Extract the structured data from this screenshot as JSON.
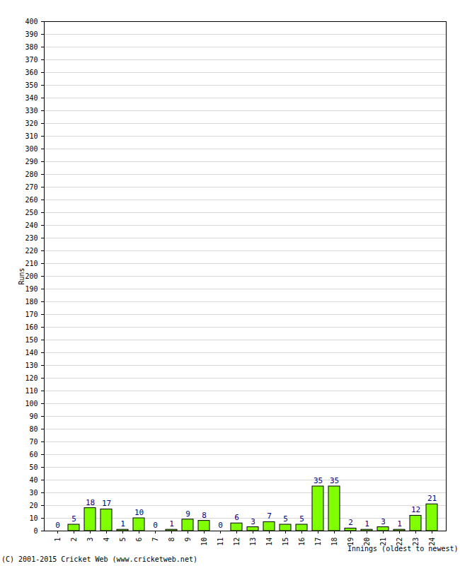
{
  "chart_data": {
    "type": "bar",
    "categories": [
      "1",
      "2",
      "3",
      "4",
      "5",
      "6",
      "7",
      "8",
      "9",
      "10",
      "11",
      "12",
      "13",
      "14",
      "15",
      "16",
      "17",
      "18",
      "19",
      "20",
      "21",
      "22",
      "23",
      "24"
    ],
    "values": [
      0,
      5,
      18,
      17,
      1,
      10,
      0,
      1,
      9,
      8,
      0,
      6,
      3,
      7,
      5,
      5,
      35,
      35,
      2,
      1,
      3,
      1,
      12,
      21
    ],
    "color": "#80ff00",
    "xlabel": "Innings (oldest to newest)",
    "ylabel": "Runs",
    "caption": "(C) 2001-2015 Cricket Web (www.cricketweb.net)",
    "ylim": [
      0,
      400
    ],
    "yticks": [
      0,
      10,
      20,
      30,
      40,
      50,
      60,
      70,
      80,
      90,
      100,
      110,
      120,
      130,
      140,
      150,
      160,
      170,
      180,
      190,
      200,
      210,
      220,
      230,
      240,
      250,
      260,
      270,
      280,
      290,
      300,
      310,
      320,
      330,
      340,
      350,
      360,
      370,
      380,
      390,
      400
    ],
    "grid": true,
    "data_labels": true
  }
}
